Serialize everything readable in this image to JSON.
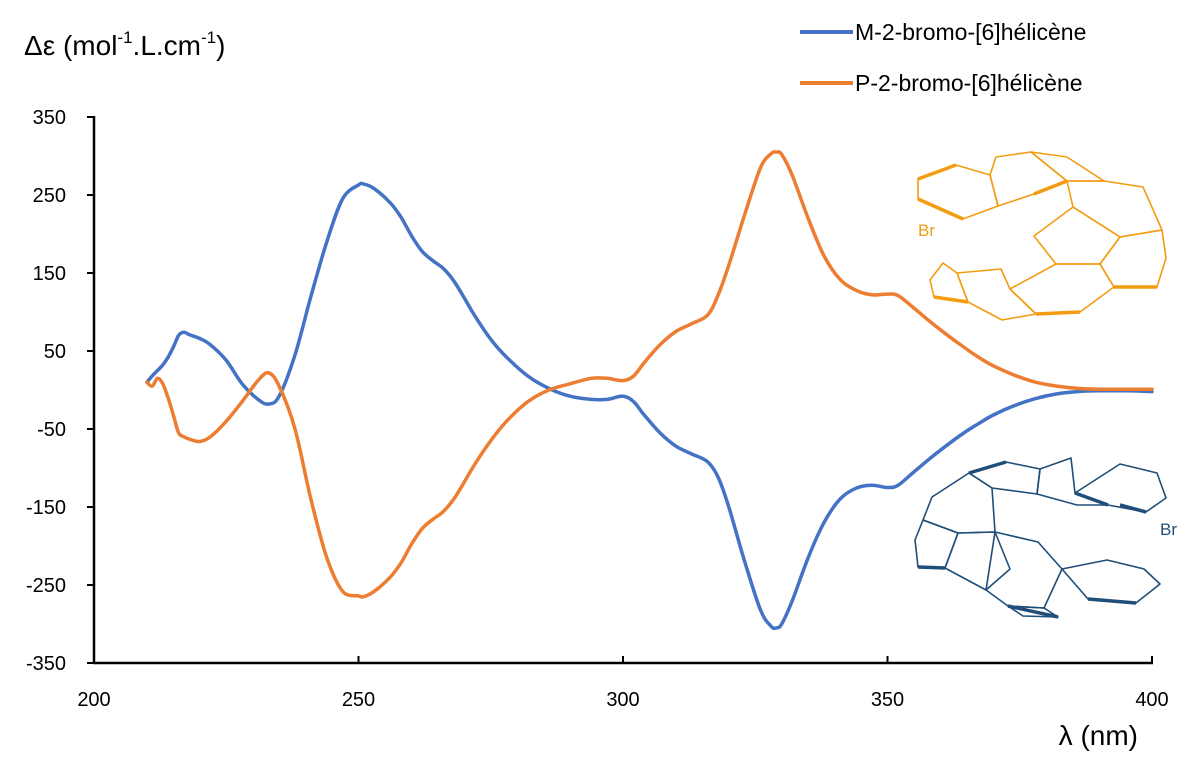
{
  "chart_data": {
    "type": "line",
    "ylabel_symbol": "Δε",
    "ylabel_open": " (mol",
    "ylabel_sup1": "-1",
    "ylabel_mid": ".L.cm",
    "ylabel_sup2": "-1",
    "ylabel_close": ")",
    "xlabel": "λ (nm)",
    "xlim": [
      200,
      400
    ],
    "ylim": [
      -350,
      350
    ],
    "xticks": [
      200,
      250,
      300,
      350,
      400
    ],
    "yticks": [
      350,
      250,
      150,
      50,
      -50,
      -150,
      -250,
      -350
    ],
    "grid": false,
    "legend_position": "top-right",
    "series": [
      {
        "name": "M-2-bromo-[6]hélicène",
        "color": "#4472c4",
        "x": [
          210,
          211,
          212,
          213,
          214,
          215,
          216,
          217,
          218,
          220,
          222,
          225,
          228,
          231,
          233,
          235,
          238,
          241,
          244,
          247,
          250,
          251,
          253,
          256,
          258,
          260,
          262,
          264,
          266,
          268,
          270,
          272,
          275,
          278,
          282,
          286,
          290,
          294,
          297,
          300,
          302,
          304,
          307,
          310,
          313,
          316,
          318,
          320,
          323,
          326,
          328,
          329,
          330,
          332,
          335,
          338,
          341,
          344,
          347,
          350,
          352,
          355,
          358,
          361,
          364,
          367,
          370,
          374,
          378,
          382,
          386,
          390,
          395,
          400
        ],
        "y": [
          10,
          18,
          25,
          32,
          42,
          55,
          70,
          74,
          71,
          66,
          58,
          38,
          8,
          -12,
          -18,
          -8,
          45,
          120,
          190,
          245,
          263,
          264,
          258,
          240,
          222,
          198,
          178,
          166,
          156,
          140,
          118,
          95,
          65,
          42,
          18,
          2,
          -8,
          -12,
          -12,
          -8,
          -15,
          -32,
          -55,
          -72,
          -82,
          -92,
          -112,
          -150,
          -220,
          -282,
          -303,
          -305,
          -300,
          -270,
          -215,
          -170,
          -140,
          -126,
          -122,
          -125,
          -122,
          -105,
          -88,
          -72,
          -57,
          -44,
          -32,
          -20,
          -11,
          -5,
          -2,
          -1,
          -1,
          -2
        ]
      },
      {
        "name": "P-2-bromo-[6]hélicène",
        "color": "#ed7d31",
        "x": [
          210,
          211,
          212,
          213,
          214,
          215,
          216,
          217,
          218,
          220,
          222,
          225,
          228,
          231,
          233,
          235,
          238,
          241,
          244,
          247,
          250,
          251,
          253,
          256,
          258,
          260,
          262,
          264,
          266,
          268,
          270,
          272,
          275,
          278,
          282,
          286,
          290,
          294,
          297,
          300,
          302,
          304,
          307,
          310,
          313,
          316,
          318,
          320,
          323,
          326,
          328,
          329,
          330,
          332,
          335,
          338,
          341,
          344,
          347,
          350,
          352,
          355,
          358,
          361,
          364,
          367,
          370,
          374,
          378,
          382,
          386,
          390,
          395,
          400
        ],
        "y": [
          10,
          5,
          15,
          8,
          -10,
          -32,
          -55,
          -60,
          -63,
          -66,
          -60,
          -40,
          -15,
          12,
          22,
          5,
          -50,
          -140,
          -215,
          -258,
          -264,
          -265,
          -258,
          -240,
          -222,
          -198,
          -178,
          -166,
          -156,
          -140,
          -118,
          -95,
          -65,
          -40,
          -15,
          0,
          8,
          15,
          15,
          12,
          18,
          35,
          58,
          75,
          85,
          96,
          122,
          160,
          225,
          285,
          303,
          305,
          302,
          275,
          220,
          172,
          142,
          128,
          122,
          123,
          121,
          105,
          88,
          72,
          57,
          43,
          31,
          19,
          10,
          5,
          2,
          1,
          1,
          1
        ]
      }
    ]
  }
}
